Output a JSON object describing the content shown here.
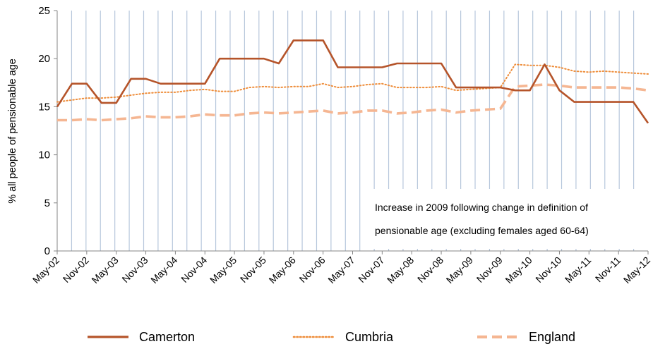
{
  "chart_data": {
    "type": "line",
    "title": "",
    "xlabel": "",
    "ylabel": "% all people of pensionable age",
    "ylim": [
      0,
      25
    ],
    "yticks": [
      "0",
      "5",
      "10",
      "15",
      "20",
      "25"
    ],
    "xtick_labels": [
      "May-02",
      "Nov-02",
      "May-03",
      "Nov-03",
      "May-04",
      "Nov-04",
      "May-05",
      "Nov-05",
      "May-06",
      "Nov-06",
      "May-07",
      "Nov-07",
      "May-08",
      "Nov-08",
      "May-09",
      "Nov-09",
      "May-10",
      "Nov-10",
      "May-11",
      "Nov-11",
      "May-12"
    ],
    "x": [
      "May-02",
      "Aug-02",
      "Nov-02",
      "Feb-03",
      "May-03",
      "Aug-03",
      "Nov-03",
      "Feb-04",
      "May-04",
      "Aug-04",
      "Nov-04",
      "Feb-05",
      "May-05",
      "Aug-05",
      "Nov-05",
      "Feb-06",
      "May-06",
      "Aug-06",
      "Nov-06",
      "Feb-07",
      "May-07",
      "Aug-07",
      "Nov-07",
      "Feb-08",
      "May-08",
      "Aug-08",
      "Nov-08",
      "Feb-09",
      "May-09",
      "Aug-09",
      "Nov-09",
      "Feb-10",
      "May-10",
      "Aug-10",
      "Nov-10",
      "Feb-11",
      "May-11",
      "Aug-11",
      "Nov-11",
      "Feb-12",
      "May-12"
    ],
    "gridlines": "vertical",
    "legend_position": "bottom",
    "annotation": [
      "Increase in 2009 following change in definition of",
      "pensionable age (excluding females aged 60-64)"
    ],
    "series": [
      {
        "name": "Camerton",
        "color": "#b5542a",
        "style": "solid",
        "values": [
          15.0,
          17.4,
          17.4,
          15.4,
          15.4,
          17.9,
          17.9,
          17.4,
          17.4,
          17.4,
          17.4,
          20.0,
          20.0,
          20.0,
          20.0,
          19.5,
          21.9,
          21.9,
          21.9,
          19.1,
          19.1,
          19.1,
          19.1,
          19.5,
          19.5,
          19.5,
          19.5,
          17.0,
          17.0,
          17.0,
          17.0,
          16.7,
          16.7,
          19.4,
          16.7,
          15.5,
          15.5,
          15.5,
          15.5,
          15.5,
          13.3
        ]
      },
      {
        "name": "Cumbria",
        "color": "#ee8d3a",
        "style": "dotted",
        "values": [
          15.5,
          15.7,
          15.9,
          15.9,
          16.0,
          16.2,
          16.4,
          16.5,
          16.5,
          16.7,
          16.8,
          16.6,
          16.6,
          17.0,
          17.1,
          17.0,
          17.1,
          17.1,
          17.4,
          17.0,
          17.1,
          17.3,
          17.4,
          17.0,
          17.0,
          17.0,
          17.1,
          16.7,
          16.8,
          16.9,
          17.0,
          19.4,
          19.3,
          19.3,
          19.1,
          18.7,
          18.6,
          18.7,
          18.6,
          18.5,
          18.4
        ]
      },
      {
        "name": "England",
        "color": "#f5b692",
        "style": "dashed",
        "values": [
          13.6,
          13.6,
          13.7,
          13.6,
          13.7,
          13.8,
          14.0,
          13.9,
          13.9,
          14.0,
          14.2,
          14.1,
          14.1,
          14.3,
          14.4,
          14.3,
          14.4,
          14.5,
          14.6,
          14.3,
          14.4,
          14.6,
          14.6,
          14.3,
          14.4,
          14.6,
          14.7,
          14.4,
          14.6,
          14.7,
          14.8,
          17.1,
          17.2,
          17.3,
          17.2,
          17.0,
          17.0,
          17.0,
          17.0,
          16.9,
          16.7
        ]
      }
    ]
  }
}
